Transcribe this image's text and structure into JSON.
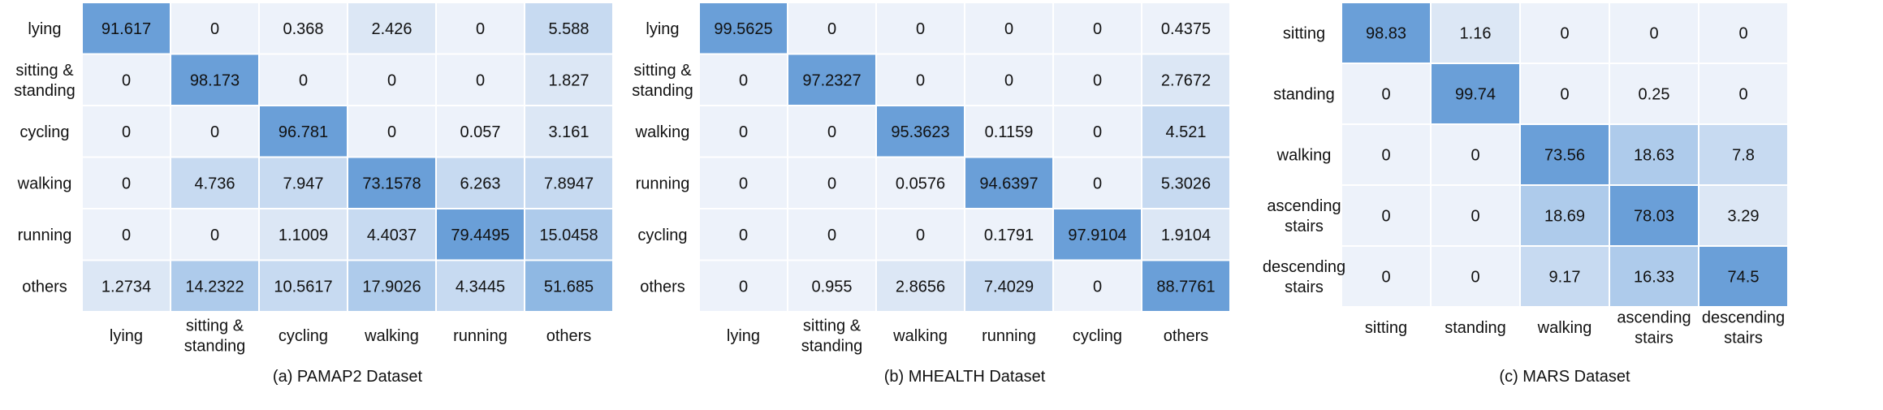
{
  "colors": {
    "scale": [
      "#edf2fa",
      "#dce7f5",
      "#c7daf1",
      "#aecbeb",
      "#8fb8e3",
      "#6a9fd8"
    ],
    "cell_border": "#ffffff",
    "text": "#111111"
  },
  "chart_data": [
    {
      "type": "heatmap",
      "caption": "(a) PAMAP2 Dataset",
      "rows": [
        [
          "lying"
        ],
        [
          "sitting &",
          "standing"
        ],
        [
          "cycling"
        ],
        [
          "walking"
        ],
        [
          "running"
        ],
        [
          "others"
        ]
      ],
      "cols": [
        [
          "lying"
        ],
        [
          "sitting &",
          "standing"
        ],
        [
          "cycling"
        ],
        [
          "walking"
        ],
        [
          "running"
        ],
        [
          "others"
        ]
      ],
      "values": [
        [
          "91.617",
          "0",
          "0.368",
          "2.426",
          "0",
          "5.588"
        ],
        [
          "0",
          "98.173",
          "0",
          "0",
          "0",
          "1.827"
        ],
        [
          "0",
          "0",
          "96.781",
          "0",
          "0.057",
          "3.161"
        ],
        [
          "0",
          "4.736",
          "7.947",
          "73.1578",
          "6.263",
          "7.8947"
        ],
        [
          "0",
          "0",
          "1.1009",
          "4.4037",
          "79.4495",
          "15.0458"
        ],
        [
          "1.2734",
          "14.2322",
          "10.5617",
          "17.9026",
          "4.3445",
          "51.685"
        ]
      ]
    },
    {
      "type": "heatmap",
      "caption": "(b) MHEALTH Dataset",
      "rows": [
        [
          "lying"
        ],
        [
          "sitting &",
          "standing"
        ],
        [
          "walking"
        ],
        [
          "running"
        ],
        [
          "cycling"
        ],
        [
          "others"
        ]
      ],
      "cols": [
        [
          "lying"
        ],
        [
          "sitting &",
          "standing"
        ],
        [
          "walking"
        ],
        [
          "running"
        ],
        [
          "cycling"
        ],
        [
          "others"
        ]
      ],
      "values": [
        [
          "99.5625",
          "0",
          "0",
          "0",
          "0",
          "0.4375"
        ],
        [
          "0",
          "97.2327",
          "0",
          "0",
          "0",
          "2.7672"
        ],
        [
          "0",
          "0",
          "95.3623",
          "0.1159",
          "0",
          "4.521"
        ],
        [
          "0",
          "0",
          "0.0576",
          "94.6397",
          "0",
          "5.3026"
        ],
        [
          "0",
          "0",
          "0",
          "0.1791",
          "97.9104",
          "1.9104"
        ],
        [
          "0",
          "0.955",
          "2.8656",
          "7.4029",
          "0",
          "88.7761"
        ]
      ]
    },
    {
      "type": "heatmap",
      "caption": "(c) MARS Dataset",
      "rows": [
        [
          "sitting"
        ],
        [
          "standing"
        ],
        [
          "walking"
        ],
        [
          "ascending",
          "stairs"
        ],
        [
          "descending",
          "stairs"
        ]
      ],
      "cols": [
        [
          "sitting"
        ],
        [
          "standing"
        ],
        [
          "walking"
        ],
        [
          "ascending",
          "stairs"
        ],
        [
          "descending",
          "stairs"
        ]
      ],
      "values": [
        [
          "98.83",
          "1.16",
          "0",
          "0",
          "0"
        ],
        [
          "0",
          "99.74",
          "0",
          "0.25",
          "0"
        ],
        [
          "0",
          "0",
          "73.56",
          "18.63",
          "7.8"
        ],
        [
          "0",
          "0",
          "18.69",
          "78.03",
          "3.29"
        ],
        [
          "0",
          "0",
          "9.17",
          "16.33",
          "74.5"
        ]
      ]
    }
  ]
}
